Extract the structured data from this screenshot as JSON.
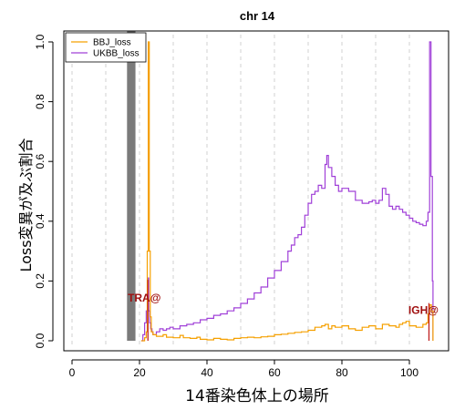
{
  "chart_data": {
    "type": "line",
    "title": "chr 14",
    "xlabel": "14番染色体上の場所",
    "ylabel": "Loss変異が及ぶ割合",
    "xlim": [
      0,
      110
    ],
    "ylim": [
      0,
      1
    ],
    "xticks": [
      "0",
      "20",
      "40",
      "60",
      "80",
      "100"
    ],
    "xtick_values": [
      0,
      20,
      40,
      60,
      80,
      100
    ],
    "yticks": [
      "0.0",
      "0.2",
      "0.4",
      "0.6",
      "0.8",
      "1.0"
    ],
    "ytick_values": [
      0,
      0.2,
      0.4,
      0.6,
      0.8,
      1.0
    ],
    "legend_position": "top-left",
    "grid": "vertical dashed",
    "centromere_band": [
      16.3,
      18.8
    ],
    "gridlines_x": [
      0,
      10,
      20,
      30,
      40,
      50,
      60,
      70,
      80,
      90,
      100
    ],
    "series": [
      {
        "name": "BBJ_loss",
        "color": "#f5a000",
        "x": [
          20.5,
          21.5,
          22.0,
          22.3,
          22.6,
          22.9,
          23.2,
          23.5,
          24.0,
          25.0,
          27.0,
          28.0,
          30.0,
          32.0,
          33.0,
          35.0,
          37.0,
          38.0,
          40.0,
          42.0,
          44.0,
          46.0,
          48.0,
          50.0,
          52.0,
          54.0,
          56.0,
          58.0,
          60.0,
          62.0,
          64.0,
          66.0,
          68.0,
          70.0,
          72.0,
          74.0,
          75.0,
          76.0,
          77.0,
          78.0,
          80.0,
          82.0,
          84.0,
          86.0,
          88.0,
          90.0,
          92.0,
          94.0,
          96.0,
          97.0,
          98.0,
          99.0,
          100.0,
          102.0,
          104.0,
          105.0,
          105.5,
          106.0,
          106.5,
          107.0
        ],
        "y": [
          0.0,
          0.01,
          0.03,
          0.3,
          1.0,
          0.3,
          0.08,
          0.03,
          0.02,
          0.015,
          0.02,
          0.012,
          0.01,
          0.018,
          0.01,
          0.008,
          0.012,
          0.005,
          0.003,
          0.008,
          0.005,
          0.003,
          0.008,
          0.01,
          0.012,
          0.01,
          0.013,
          0.015,
          0.02,
          0.022,
          0.025,
          0.028,
          0.03,
          0.035,
          0.045,
          0.05,
          0.055,
          0.04,
          0.05,
          0.045,
          0.05,
          0.04,
          0.035,
          0.045,
          0.05,
          0.04,
          0.055,
          0.05,
          0.045,
          0.055,
          0.06,
          0.065,
          0.05,
          0.045,
          0.055,
          0.06,
          0.09,
          0.12,
          0.1,
          0.0
        ]
      },
      {
        "name": "UKBB_loss",
        "color": "#a040d8",
        "x": [
          20.5,
          21.0,
          21.5,
          22.0,
          22.4,
          22.7,
          23.0,
          23.3,
          23.7,
          24.0,
          25.0,
          26.0,
          27.0,
          28.0,
          29.0,
          30.0,
          32.0,
          34.0,
          36.0,
          38.0,
          40.0,
          42.0,
          44.0,
          46.0,
          48.0,
          50.0,
          52.0,
          54.0,
          56.0,
          58.0,
          60.0,
          62.0,
          64.0,
          65.0,
          66.0,
          67.0,
          68.0,
          69.0,
          70.0,
          71.0,
          72.0,
          73.0,
          74.0,
          75.0,
          75.5,
          76.0,
          77.0,
          78.0,
          79.0,
          80.0,
          82.0,
          84.0,
          86.0,
          88.0,
          89.0,
          90.0,
          91.0,
          92.0,
          93.0,
          94.0,
          95.0,
          96.0,
          97.0,
          98.0,
          99.0,
          100.0,
          101.0,
          102.0,
          103.0,
          104.0,
          105.0,
          105.5,
          106.0,
          106.4,
          106.8,
          107.0
        ],
        "y": [
          0.0,
          0.02,
          0.06,
          0.1,
          0.21,
          0.1,
          0.06,
          0.04,
          0.03,
          0.02,
          0.03,
          0.04,
          0.035,
          0.04,
          0.045,
          0.04,
          0.05,
          0.055,
          0.06,
          0.07,
          0.075,
          0.085,
          0.09,
          0.1,
          0.11,
          0.125,
          0.14,
          0.16,
          0.18,
          0.21,
          0.235,
          0.265,
          0.3,
          0.32,
          0.345,
          0.355,
          0.38,
          0.42,
          0.46,
          0.49,
          0.5,
          0.52,
          0.51,
          0.59,
          0.62,
          0.58,
          0.55,
          0.52,
          0.5,
          0.51,
          0.5,
          0.47,
          0.46,
          0.465,
          0.47,
          0.46,
          0.47,
          0.51,
          0.49,
          0.45,
          0.44,
          0.45,
          0.44,
          0.43,
          0.42,
          0.41,
          0.4,
          0.395,
          0.39,
          0.385,
          0.4,
          0.43,
          1.0,
          0.55,
          0.2,
          0.0
        ]
      }
    ],
    "annotations": [
      {
        "text": "TRA@",
        "x": 22.5,
        "y": 0.21
      },
      {
        "text": "IGH@",
        "x": 105.8,
        "y": 0.12
      }
    ]
  }
}
